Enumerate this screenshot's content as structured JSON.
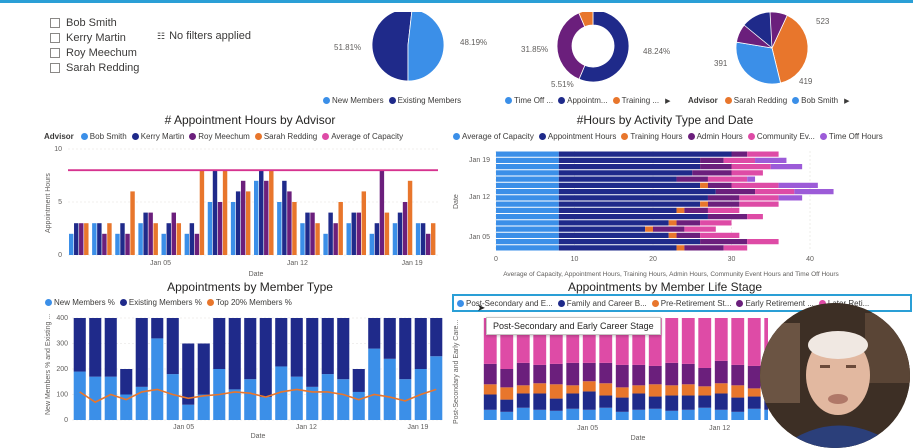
{
  "advisors_slicer": [
    "Bob Smith",
    "Kerry Martin",
    "Roy Meechum",
    "Sarah Redding"
  ],
  "filters_text": "No filters applied",
  "colors": {
    "light_blue": "#3b8fe8",
    "dark_navy": "#1f2a8a",
    "orange": "#e8762c",
    "purple": "#6b1f7c",
    "pink": "#de4ba6",
    "pink_line": "#d6338f",
    "lavender": "#9c5bd8",
    "highlight": "#2a9fd6"
  },
  "chart_data": [
    {
      "id": "pie-members",
      "type": "pie",
      "slices": [
        {
          "name": "New Members",
          "value": 51.81,
          "label": "51.81%"
        },
        {
          "name": "Existing Members",
          "value": 48.19,
          "label": "48.19%"
        }
      ],
      "legend": [
        "New Members",
        "Existing Members"
      ]
    },
    {
      "id": "donut-activity",
      "type": "pie",
      "slices": [
        {
          "name": "Time Off ...",
          "value": 31.85,
          "label": "31.85%"
        },
        {
          "name": "Appointm...",
          "value": 48.24,
          "label": "48.24%"
        },
        {
          "name": "Training ...",
          "value": 5.51,
          "label": "5.51%"
        }
      ],
      "legend": [
        "Time Off ...",
        "Appointm...",
        "Training ..."
      ]
    },
    {
      "id": "pie-advisor",
      "type": "pie",
      "slices": [
        {
          "name": "Sarah Redding",
          "value": 523,
          "label": "523"
        },
        {
          "name": "Bob Smith",
          "value": 419,
          "label": "419"
        },
        {
          "name": "Kerry Martin",
          "value": 391,
          "label": "391"
        }
      ],
      "legend_title": "Advisor",
      "legend": [
        "Sarah Redding",
        "Bob Smith"
      ]
    },
    {
      "id": "appt-hours",
      "type": "bar",
      "title": "# Appointment Hours by Advisor",
      "legend_title": "Advisor",
      "legend": [
        "Bob Smith",
        "Kerry Martin",
        "Roy Meechum",
        "Sarah Redding",
        "Average of Capacity"
      ],
      "xlabel": "Date",
      "ylabel": "Appointment Hours",
      "yticks": [
        0,
        5,
        10
      ],
      "ylim": [
        0,
        10
      ],
      "xticks": [
        "Jan 05",
        "Jan 12",
        "Jan 19"
      ],
      "capacity": 8,
      "series": [
        {
          "name": "Bob Smith",
          "values": [
            2,
            3,
            2,
            3,
            2,
            2,
            5,
            5,
            7,
            5,
            3,
            2,
            3,
            2,
            3,
            3
          ]
        },
        {
          "name": "Kerry Martin",
          "values": [
            3,
            3,
            3,
            4,
            3,
            3,
            8,
            6,
            8,
            7,
            4,
            4,
            4,
            3,
            4,
            3
          ]
        },
        {
          "name": "Roy Meechum",
          "values": [
            3,
            2,
            2,
            4,
            4,
            2,
            5,
            7,
            7,
            6,
            4,
            3,
            4,
            8,
            5,
            2
          ]
        },
        {
          "name": "Sarah Redding",
          "values": [
            3,
            3,
            6,
            3,
            3,
            8,
            8,
            6,
            8,
            5,
            3,
            5,
            6,
            4,
            7,
            3
          ]
        }
      ]
    },
    {
      "id": "hours-activity",
      "type": "bar",
      "title": "#Hours by Activity Type and Date",
      "legend": [
        "Average of Capacity",
        "Appointment Hours",
        "Training Hours",
        "Admin Hours",
        "Community Ev...",
        "Time Off Hours"
      ],
      "xlabel": "Average of Capacity, Appointment Hours, Training Hours, Admin Hours, Community Event Hours and Time Off Hours",
      "ylabel": "Date",
      "xticks": [
        0,
        10,
        20,
        30,
        40
      ],
      "xlim": [
        0,
        40
      ],
      "yticks": [
        "Jan 19",
        "Jan 12",
        "Jan 05"
      ],
      "rows": [
        [
          8,
          22,
          0,
          2,
          4,
          0
        ],
        [
          8,
          18,
          0,
          3,
          4,
          4
        ],
        [
          8,
          18,
          0,
          4,
          5,
          4
        ],
        [
          8,
          17,
          0,
          5,
          4,
          0
        ],
        [
          8,
          15,
          0,
          4,
          5,
          1
        ],
        [
          8,
          18,
          1,
          3,
          6,
          5
        ],
        [
          8,
          20,
          0,
          5,
          5,
          5
        ],
        [
          8,
          19,
          0,
          4,
          5,
          3
        ],
        [
          8,
          18,
          1,
          4,
          5,
          0
        ],
        [
          8,
          15,
          1,
          3,
          4,
          0
        ],
        [
          8,
          19,
          0,
          5,
          2,
          0
        ],
        [
          8,
          14,
          1,
          3,
          4,
          0
        ],
        [
          8,
          11,
          1,
          4,
          4,
          0
        ],
        [
          8,
          14,
          1,
          3,
          5,
          0
        ],
        [
          8,
          18,
          0,
          6,
          4,
          0
        ],
        [
          8,
          15,
          1,
          5,
          3,
          0
        ]
      ]
    },
    {
      "id": "member-type",
      "type": "bar",
      "title": "Appointments by Member Type",
      "legend": [
        "New Members %",
        "Existing Members %",
        "Top 20% Members %"
      ],
      "xlabel": "Date",
      "ylabel": "New Members % and Existing ...",
      "yticks": [
        0,
        100,
        200,
        300,
        400
      ],
      "ylim": [
        0,
        400
      ],
      "xticks": [
        "Jan 05",
        "Jan 12",
        "Jan 19"
      ],
      "series": [
        {
          "name": "New Members %",
          "values": [
            190,
            170,
            170,
            100,
            130,
            320,
            180,
            60,
            100,
            200,
            120,
            160,
            90,
            210,
            170,
            130,
            180,
            160,
            110,
            280,
            240,
            160,
            200,
            250
          ]
        },
        {
          "name": "Existing Members %",
          "values": [
            210,
            230,
            230,
            100,
            270,
            80,
            220,
            240,
            200,
            200,
            280,
            240,
            310,
            190,
            230,
            270,
            220,
            240,
            90,
            120,
            160,
            240,
            200,
            150
          ]
        },
        {
          "name": "Top 20% Members %",
          "values": [
            110,
            70,
            100,
            80,
            110,
            120,
            100,
            85,
            95,
            100,
            110,
            105,
            90,
            110,
            120,
            110,
            110,
            100,
            80,
            100,
            90,
            75,
            100,
            120
          ]
        }
      ]
    },
    {
      "id": "member-life",
      "type": "bar",
      "title": "Appointments by Member Life Stage",
      "legend": [
        "Post-Secondary and E...",
        "Family and Career B...",
        "Pre-Retirement St...",
        "Early Retirement ...",
        "Later Reti..."
      ],
      "xlabel": "Date",
      "ylabel": "Post-Secondary and Early Care...",
      "xticks": [
        "Jan 05",
        "Jan 12"
      ],
      "tooltip": "Post-Secondary and Early Career Stage",
      "series": [
        {
          "name": "Post-Secondary and E...",
          "values": [
            10,
            8,
            12,
            10,
            9,
            11,
            10,
            12,
            8,
            10,
            11,
            9,
            10,
            12,
            10,
            8,
            11,
            10,
            9,
            10
          ]
        },
        {
          "name": "Family and Career B...",
          "values": [
            15,
            12,
            14,
            16,
            12,
            15,
            18,
            12,
            14,
            16,
            12,
            15,
            14,
            12,
            16,
            14,
            12,
            15,
            13,
            14
          ]
        },
        {
          "name": "Pre-Retirement St...",
          "values": [
            10,
            12,
            8,
            10,
            14,
            8,
            10,
            12,
            10,
            8,
            12,
            10,
            11,
            9,
            10,
            12,
            8,
            10,
            12,
            9
          ]
        },
        {
          "name": "Early Retirement ...",
          "values": [
            20,
            18,
            22,
            18,
            20,
            22,
            18,
            20,
            22,
            20,
            18,
            22,
            20,
            18,
            22,
            20,
            22,
            18,
            20,
            21
          ]
        },
        {
          "name": "Later Reti...",
          "values": [
            45,
            50,
            44,
            46,
            45,
            44,
            44,
            44,
            46,
            46,
            47,
            44,
            45,
            49,
            42,
            46,
            47,
            47,
            46,
            46
          ]
        }
      ]
    }
  ]
}
